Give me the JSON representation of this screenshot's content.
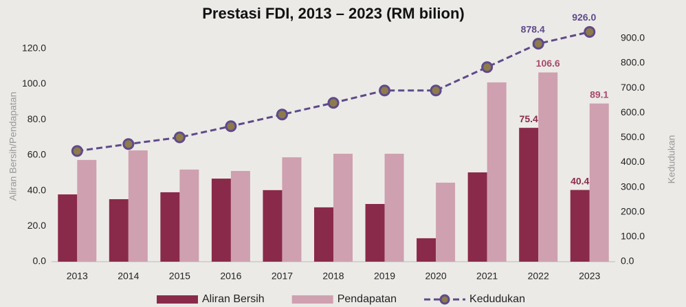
{
  "chart_data": {
    "type": "bar-line",
    "title": "Prestasi FDI, 2013 – 2023 (RM bilion)",
    "y_label": "Aliran Bersih/Pendapatan",
    "y2_label": "Kedudukan",
    "categories": [
      "2013",
      "2014",
      "2015",
      "2016",
      "2017",
      "2018",
      "2019",
      "2020",
      "2021",
      "2022",
      "2023"
    ],
    "series": [
      {
        "name": "Aliran Bersih",
        "type": "bar",
        "color": "#8a2a4a",
        "label_color": "#8a2a4a",
        "values": [
          37.9,
          35.2,
          39.1,
          46.8,
          40.3,
          30.6,
          32.5,
          13.2,
          50.3,
          75.4,
          40.4
        ],
        "value_labels": [
          null,
          null,
          null,
          null,
          null,
          null,
          null,
          null,
          null,
          "75.4",
          "40.4"
        ]
      },
      {
        "name": "Pendapatan",
        "type": "bar",
        "color": "#cfa0b0",
        "label_color": "#a8496a",
        "values": [
          57.3,
          62.7,
          51.9,
          51.1,
          58.8,
          60.8,
          60.8,
          44.5,
          101.0,
          106.6,
          89.1
        ],
        "value_labels": [
          null,
          null,
          null,
          null,
          null,
          null,
          null,
          null,
          null,
          "106.6",
          "89.1"
        ]
      },
      {
        "name": "Kedudukan",
        "type": "line",
        "axis": "y2",
        "color": "#5e4a8a",
        "marker_color": "#8e7a4a",
        "label_color": "#5e4a8a",
        "values": [
          446,
          474,
          501,
          546,
          593,
          640,
          690,
          690,
          784,
          878.4,
          926.0
        ],
        "value_labels": [
          null,
          null,
          null,
          null,
          null,
          null,
          null,
          null,
          null,
          "878.4",
          "926.0"
        ]
      }
    ],
    "ylim": [
      0,
      130
    ],
    "yticks": [
      {
        "value": 0,
        "label": "0.0"
      },
      {
        "value": 20,
        "label": "20.0"
      },
      {
        "value": 40,
        "label": "40.0"
      },
      {
        "value": 60,
        "label": "60.0"
      },
      {
        "value": 80,
        "label": "80.0"
      },
      {
        "value": 100,
        "label": "100.0"
      },
      {
        "value": 120,
        "label": "120.0"
      }
    ],
    "y2lim": [
      0,
      930
    ],
    "y2ticks": [
      {
        "value": 0,
        "label": "0.0"
      },
      {
        "value": 100,
        "label": "100.0"
      },
      {
        "value": 200,
        "label": "200.0"
      },
      {
        "value": 300,
        "label": "300.0"
      },
      {
        "value": 400,
        "label": "400.0"
      },
      {
        "value": 500,
        "label": "500.0"
      },
      {
        "value": 600,
        "label": "600.0"
      },
      {
        "value": 700,
        "label": "700.0"
      },
      {
        "value": 800,
        "label": "800.0"
      },
      {
        "value": 900,
        "label": "900.0"
      }
    ],
    "legend": "bottom"
  }
}
